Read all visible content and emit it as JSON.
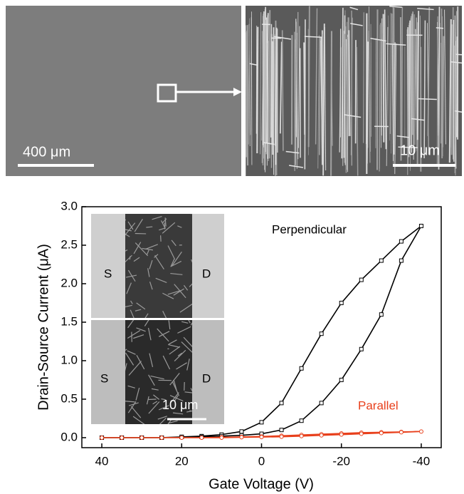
{
  "micrographs": {
    "left_scale": "400 μm",
    "right_scale": "10 μm"
  },
  "chart_data": {
    "type": "line",
    "x_label": "Gate Voltage (V)",
    "y_label": "Drain-Source Current (μA)",
    "x": [
      40,
      35,
      30,
      25,
      20,
      15,
      10,
      5,
      0,
      -5,
      -10,
      -15,
      -20,
      -25,
      -30,
      -35,
      -40,
      -35,
      -30,
      -25,
      -20,
      -15,
      -10,
      -5,
      0,
      5,
      10,
      15,
      20,
      25,
      30,
      35,
      40
    ],
    "series": [
      {
        "name": "Perpendicular",
        "color": "#000000",
        "marker": "square",
        "values": [
          0,
          0,
          0,
          0,
          0.01,
          0.02,
          0.04,
          0.08,
          0.2,
          0.45,
          0.9,
          1.35,
          1.75,
          2.05,
          2.3,
          2.55,
          2.75,
          2.3,
          1.6,
          1.15,
          0.75,
          0.45,
          0.22,
          0.1,
          0.05,
          0.03,
          0.02,
          0.01,
          0.01,
          0,
          0,
          0,
          0
        ]
      },
      {
        "name": "Parallel",
        "color": "#e8401c",
        "marker": "circle",
        "values": [
          0,
          0,
          0,
          0,
          0,
          0,
          0.005,
          0.01,
          0.015,
          0.025,
          0.035,
          0.045,
          0.055,
          0.065,
          0.07,
          0.075,
          0.08,
          0.07,
          0.06,
          0.05,
          0.04,
          0.03,
          0.02,
          0.012,
          0.008,
          0.005,
          0,
          0,
          0,
          0,
          0,
          0,
          0
        ]
      }
    ],
    "xlim": [
      45,
      -45
    ],
    "ylim": [
      -0.13,
      3.0
    ],
    "xticks": [
      40,
      20,
      0,
      -20,
      -40
    ],
    "yticks": [
      {
        "value": 0,
        "label": "0.0"
      },
      0.5,
      {
        "value": 1,
        "label": "1.0"
      },
      1.5,
      {
        "value": 2,
        "label": "2.0"
      },
      2.5,
      {
        "value": 3,
        "label": "3.0"
      }
    ],
    "inset": {
      "source": "S",
      "drain": "D",
      "scale": "10 μm"
    }
  }
}
